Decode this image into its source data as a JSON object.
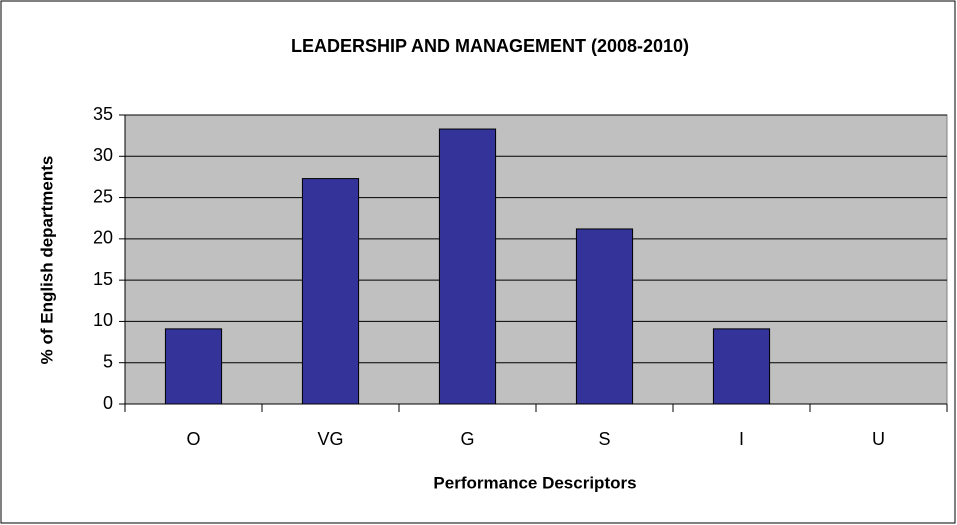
{
  "chart_data": {
    "type": "bar",
    "title": "LEADERSHIP AND MANAGEMENT (2008-2010)",
    "x_label": "Performance Descriptors",
    "y_label": "% of English departments",
    "categories": [
      "O",
      "VG",
      "G",
      "S",
      "I",
      "U"
    ],
    "values": [
      9.1,
      27.3,
      33.3,
      21.2,
      9.1,
      0
    ],
    "color": "#333399",
    "ylim": [
      0,
      35
    ],
    "yticks": [
      0,
      5,
      10,
      15,
      20,
      25,
      30,
      35
    ],
    "grid": true
  }
}
